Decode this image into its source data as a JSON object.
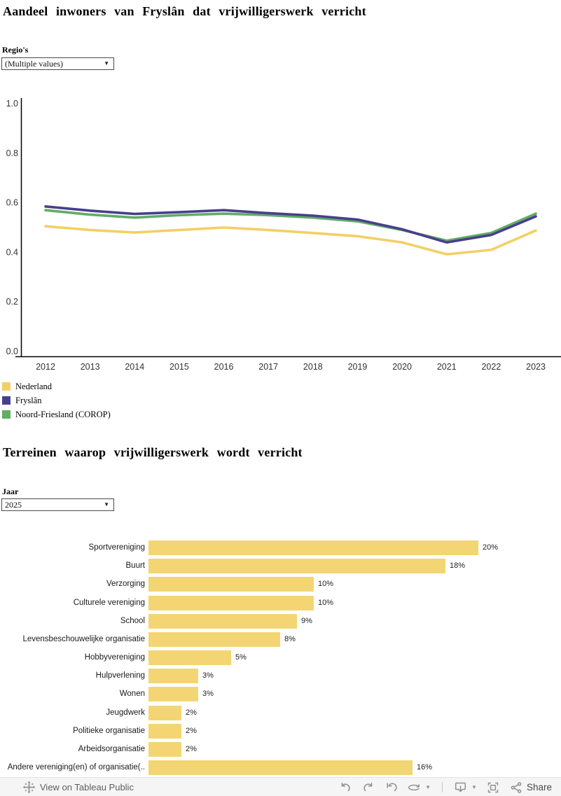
{
  "filters": {
    "regio": {
      "label": "Regio's",
      "value": "(Multiple values)"
    },
    "jaar": {
      "label": "Jaar",
      "value": "2025"
    }
  },
  "chart_data": [
    {
      "type": "line",
      "title": "Aandeel inwoners van Fryslân dat vrijwilligerswerk verricht",
      "x": [
        2012,
        2013,
        2014,
        2015,
        2016,
        2017,
        2018,
        2019,
        2020,
        2021,
        2022,
        2023
      ],
      "series": [
        {
          "name": "Nederland",
          "color": "#F2D065",
          "values": [
            0.505,
            0.49,
            0.48,
            0.49,
            0.5,
            0.49,
            0.478,
            0.465,
            0.44,
            0.392,
            0.41,
            0.488
          ]
        },
        {
          "name": "Fryslân",
          "color": "#483F8C",
          "values": [
            0.585,
            0.568,
            0.555,
            0.562,
            0.57,
            0.558,
            0.548,
            0.532,
            0.493,
            0.44,
            0.47,
            0.545
          ]
        },
        {
          "name": "Noord-Friesland (COROP)",
          "color": "#62AC66",
          "values": [
            0.57,
            0.552,
            0.54,
            0.55,
            0.556,
            0.55,
            0.54,
            0.525,
            0.49,
            0.447,
            0.478,
            0.556
          ]
        }
      ],
      "ylim": [
        0.0,
        1.0
      ],
      "yticks": [
        0.0,
        0.2,
        0.4,
        0.6,
        0.8,
        1.0
      ],
      "grid": false,
      "legend_position": "bottom-left",
      "legend_order": [
        "Nederland",
        "Fryslân",
        "Noord-Friesland (COROP)"
      ]
    },
    {
      "type": "bar",
      "title": "Terreinen waarop vrijwilligerswerk wordt verricht",
      "orientation": "horizontal",
      "bar_color": "#F4D573",
      "value_suffix": "%",
      "categories": [
        "Sportvereniging",
        "Buurt",
        "Verzorging",
        "Culturele vereniging",
        "School",
        "Levensbeschouwelijke organisatie",
        "Hobbyvereniging",
        "Hulpverlening",
        "Wonen",
        "Jeugdwerk",
        "Politieke organisatie",
        "Arbeidsorganisatie",
        "Andere vereniging(en) of organisatie(.."
      ],
      "values": [
        20,
        18,
        10,
        10,
        9,
        8,
        5,
        3,
        3,
        2,
        2,
        2,
        16
      ]
    }
  ],
  "toolbar": {
    "view_label": "View on Tableau Public",
    "share_label": "Share",
    "icons": [
      "tableau-logo-icon",
      "undo-icon",
      "redo-icon",
      "reset-icon",
      "refresh-icon",
      "caret-down-icon",
      "download-icon",
      "caret-down-icon",
      "fullscreen-icon",
      "share-icon"
    ]
  }
}
